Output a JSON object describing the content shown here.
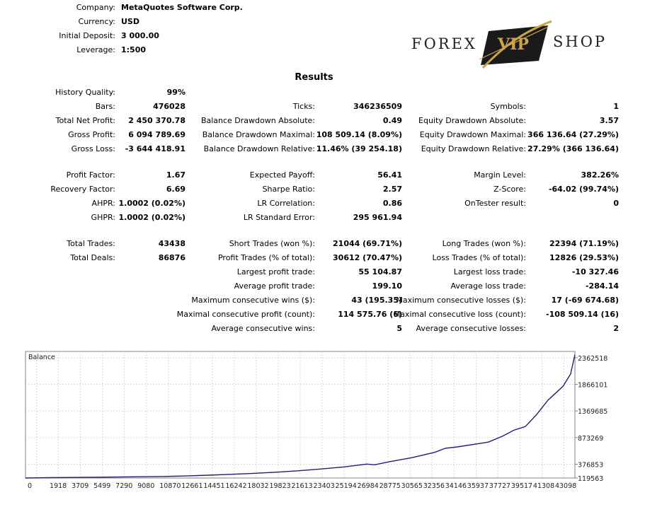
{
  "header": [
    {
      "label": "Company:",
      "value": "MetaQuotes Software Corp."
    },
    {
      "label": "Currency:",
      "value": "USD"
    },
    {
      "label": "Initial Deposit:",
      "value": "3 000.00"
    },
    {
      "label": "Leverage:",
      "value": "1:500"
    }
  ],
  "logo": {
    "left": "FOREX",
    "badge": "VIP",
    "right": "SHOP",
    "gold": "#c9a449",
    "dark": "#222222"
  },
  "results_title": "Results",
  "col1": [
    {
      "label": "History Quality:",
      "value": "99%"
    },
    {
      "label": "Bars:",
      "value": "476028"
    },
    {
      "label": "Total Net Profit:",
      "value": "2 450 370.78"
    },
    {
      "label": "Gross Profit:",
      "value": "6 094 789.69"
    },
    {
      "label": "Gross Loss:",
      "value": "-3 644 418.91"
    },
    {
      "label": "Profit Factor:",
      "value": "1.67"
    },
    {
      "label": "Recovery Factor:",
      "value": "6.69"
    },
    {
      "label": "AHPR:",
      "value": "1.0002 (0.02%)"
    },
    {
      "label": "GHPR:",
      "value": "1.0002 (0.02%)"
    },
    {
      "label": "Total Trades:",
      "value": "43438"
    },
    {
      "label": "Total Deals:",
      "value": "86876"
    }
  ],
  "col2": [
    {
      "label": "Ticks:",
      "value": "346236509"
    },
    {
      "label": "Balance Drawdown Absolute:",
      "value": "0.49"
    },
    {
      "label": "Balance Drawdown Maximal:",
      "value": "108 509.14 (8.09%)"
    },
    {
      "label": "Balance Drawdown Relative:",
      "value": "11.46% (39 254.18)"
    },
    {
      "label": "Expected Payoff:",
      "value": "56.41"
    },
    {
      "label": "Sharpe Ratio:",
      "value": "2.57"
    },
    {
      "label": "LR Correlation:",
      "value": "0.86"
    },
    {
      "label": "LR Standard Error:",
      "value": "295 961.94"
    },
    {
      "label": "Short Trades (won %):",
      "value": "21044 (69.71%)"
    },
    {
      "label": "Profit Trades (% of total):",
      "value": "30612 (70.47%)"
    },
    {
      "label": "Largest profit trade:",
      "value": "55 104.87"
    },
    {
      "label": "Average profit trade:",
      "value": "199.10"
    },
    {
      "label": "Maximum consecutive wins ($):",
      "value": "43 (195.35)"
    },
    {
      "label": "Maximal consecutive profit (count):",
      "value": "114 575.76 (6)"
    },
    {
      "label": "Average consecutive wins:",
      "value": "5"
    }
  ],
  "col3": [
    {
      "label": "Symbols:",
      "value": "1"
    },
    {
      "label": "Equity Drawdown Absolute:",
      "value": "3.57"
    },
    {
      "label": "Equity Drawdown Maximal:",
      "value": "366 136.64 (27.29%)"
    },
    {
      "label": "Equity Drawdown Relative:",
      "value": "27.29% (366 136.64)"
    },
    {
      "label": "Margin Level:",
      "value": "382.26%"
    },
    {
      "label": "Z-Score:",
      "value": "-64.02 (99.74%)"
    },
    {
      "label": "OnTester result:",
      "value": "0"
    },
    {
      "label": "Long Trades (won %):",
      "value": "22394 (71.19%)"
    },
    {
      "label": "Loss Trades (% of total):",
      "value": "12826 (29.53%)"
    },
    {
      "label": "Largest loss trade:",
      "value": "-10 327.46"
    },
    {
      "label": "Average loss trade:",
      "value": "-284.14"
    },
    {
      "label": "Maximum consecutive losses ($):",
      "value": "17 (-69 674.68)"
    },
    {
      "label": "Maximal consecutive loss (count):",
      "value": "-108 509.14 (16)"
    },
    {
      "label": "Average consecutive losses:",
      "value": "2"
    }
  ],
  "chart_data": {
    "type": "line",
    "title": "Balance",
    "line_color": "#1f1f7a",
    "grid": true,
    "x_ticks": [
      "0",
      "1918",
      "3709",
      "5499",
      "7290",
      "9080",
      "10870",
      "12661",
      "14451",
      "16242",
      "18032",
      "19823",
      "21613",
      "23403",
      "25194",
      "26984",
      "28775",
      "30565",
      "32356",
      "34146",
      "35937",
      "37727",
      "39517",
      "41308",
      "43098"
    ],
    "y_ticks": [
      "2362518",
      "1866101",
      "1369685",
      "873269",
      "376853",
      "119563"
    ],
    "ylim": [
      119563,
      2480000
    ],
    "xlim": [
      0,
      43438
    ],
    "series": [
      {
        "x": [
          0,
          1918,
          3709,
          5499,
          7290,
          9080,
          10870,
          12661,
          14451,
          16242,
          18032,
          19823,
          21613,
          23403,
          25194,
          26984,
          27600,
          28775,
          30565,
          32356,
          33200,
          34146,
          35937,
          36600,
          37727,
          38600,
          39517,
          40400,
          41308,
          41900,
          42500,
          43098,
          43438
        ],
        "y": [
          119563,
          126000,
          130000,
          134000,
          138000,
          143000,
          149000,
          158000,
          172000,
          188000,
          207000,
          228000,
          255000,
          288000,
          327000,
          380000,
          366000,
          424000,
          500000,
          598000,
          675000,
          700000,
          765000,
          790000,
          900000,
          1010000,
          1080000,
          1300000,
          1570000,
          1700000,
          1830000,
          2060000,
          2420000
        ]
      }
    ]
  }
}
